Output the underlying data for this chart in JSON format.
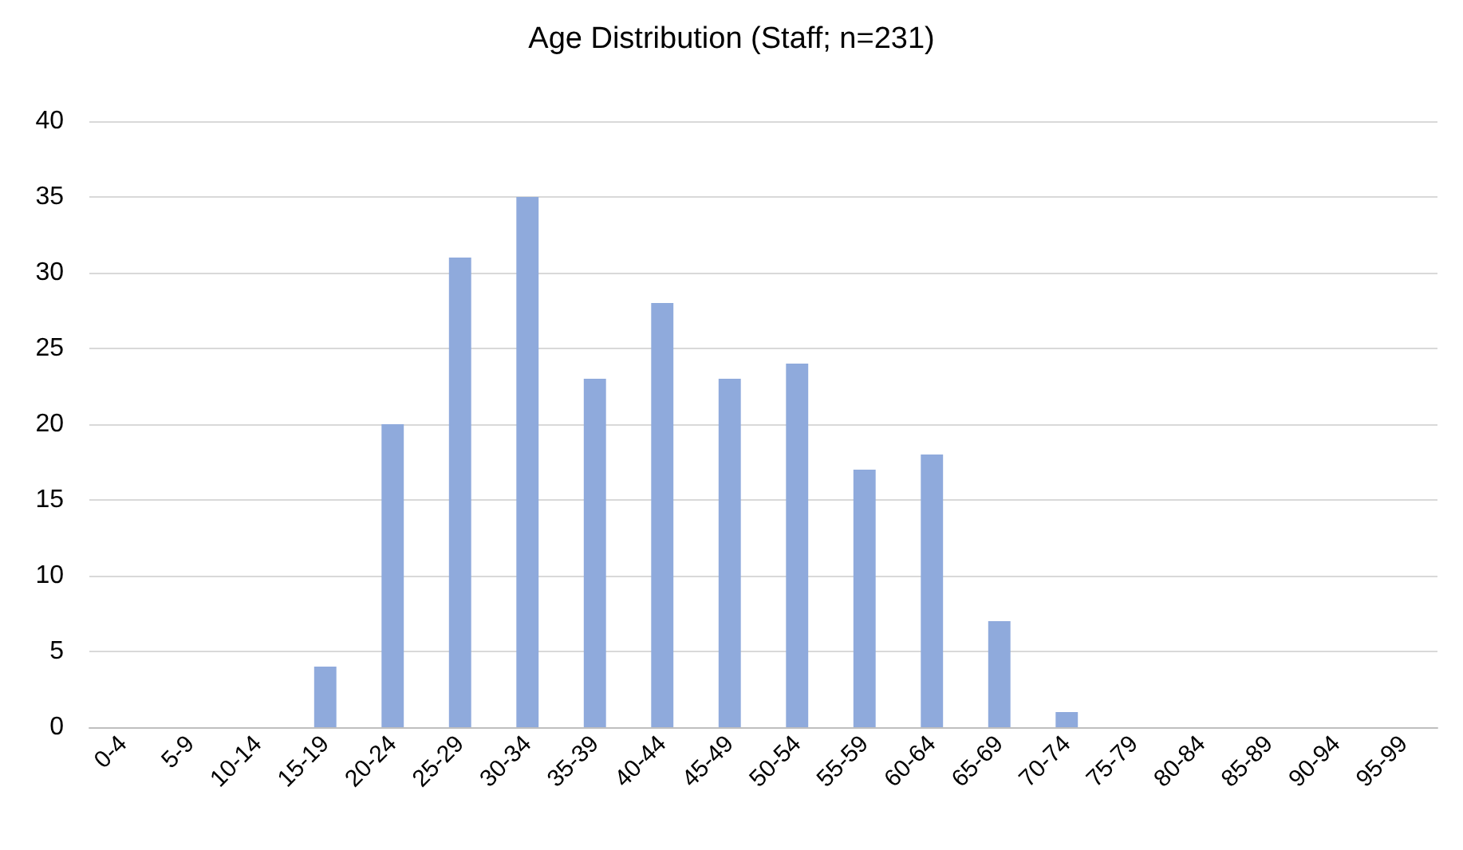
{
  "chart_data": {
    "type": "bar",
    "title": "Age Distribution (Staff; n=231)",
    "categories": [
      "0-4",
      "5-9",
      "10-14",
      "15-19",
      "20-24",
      "25-29",
      "30-34",
      "35-39",
      "40-44",
      "45-49",
      "50-54",
      "55-59",
      "60-64",
      "65-69",
      "70-74",
      "75-79",
      "80-84",
      "85-89",
      "90-94",
      "95-99"
    ],
    "values": [
      0,
      0,
      0,
      4,
      20,
      31,
      35,
      23,
      28,
      23,
      24,
      17,
      18,
      7,
      1,
      0,
      0,
      0,
      0,
      0
    ],
    "color": "#8faadc",
    "ylim": [
      0,
      40
    ],
    "yticks": [
      0,
      5,
      10,
      15,
      20,
      25,
      30,
      35,
      40
    ],
    "grid": "y"
  }
}
